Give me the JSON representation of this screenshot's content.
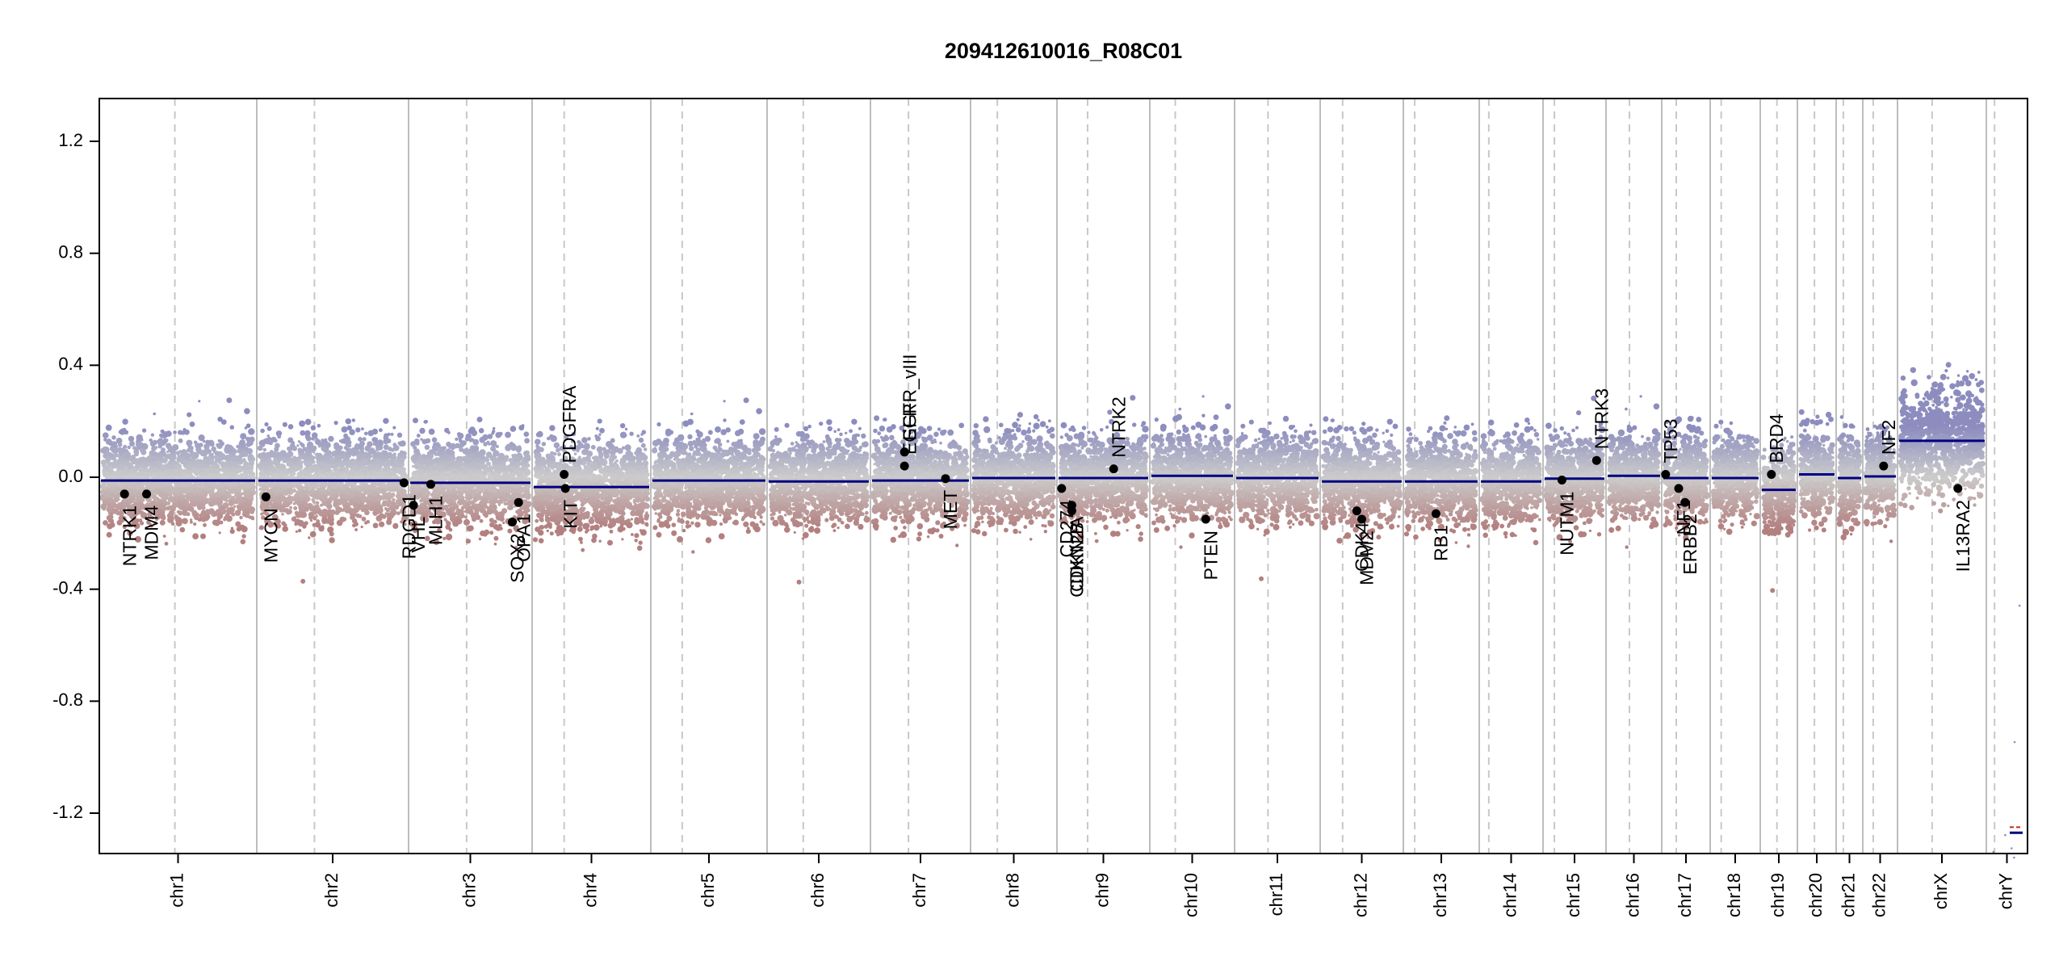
{
  "chart_data": {
    "type": "scatter",
    "title": "209412610016_R08C01",
    "xlabel": "",
    "ylabel": "",
    "ylim": [
      -1.35,
      1.35
    ],
    "y_ticks": [
      -1.2,
      -0.8,
      -0.4,
      0.0,
      0.4,
      0.8,
      1.2
    ],
    "y_tick_labels": [
      "-1.2",
      "-0.8",
      "-0.4",
      "0.0",
      "0.4",
      "0.8",
      "1.2"
    ],
    "grid": false,
    "colors": {
      "gain": "#8c8cbf",
      "loss": "#b38080",
      "neutral": "#cccccc",
      "segment": "#000080",
      "gene_point": "#000000",
      "chrom_boundary": "#bdbdbd",
      "centromere": "#c8c8c8",
      "frame": "#000000",
      "y_segment_red": "#cc2222"
    },
    "chromosomes": [
      {
        "name": "chr1",
        "centromere": 0.48,
        "segment": -0.012
      },
      {
        "name": "chr2",
        "centromere": 0.38,
        "segment": -0.012
      },
      {
        "name": "chr3",
        "centromere": 0.47,
        "segment": -0.02
      },
      {
        "name": "chr4",
        "centromere": 0.27,
        "segment": -0.035
      },
      {
        "name": "chr5",
        "centromere": 0.27,
        "segment": -0.012
      },
      {
        "name": "chr6",
        "centromere": 0.35,
        "segment": -0.015
      },
      {
        "name": "chr7",
        "centromere": 0.38,
        "segment": -0.012
      },
      {
        "name": "chr8",
        "centromere": 0.31,
        "segment": -0.003
      },
      {
        "name": "chr9",
        "centromere": 0.33,
        "segment": -0.003
      },
      {
        "name": "chr10",
        "centromere": 0.3,
        "segment": 0.005
      },
      {
        "name": "chr11",
        "centromere": 0.39,
        "segment": -0.003
      },
      {
        "name": "chr12",
        "centromere": 0.27,
        "segment": -0.015
      },
      {
        "name": "chr13",
        "centromere": 0.15,
        "segment": -0.015
      },
      {
        "name": "chr14",
        "centromere": 0.15,
        "segment": -0.015
      },
      {
        "name": "chr15",
        "centromere": 0.18,
        "segment": -0.005
      },
      {
        "name": "chr16",
        "centromere": 0.42,
        "segment": 0.005
      },
      {
        "name": "chr17",
        "centromere": 0.3,
        "segment": -0.003
      },
      {
        "name": "chr18",
        "centromere": 0.22,
        "segment": -0.003
      },
      {
        "name": "chr19",
        "centromere": 0.45,
        "segment": -0.045
      },
      {
        "name": "chr20",
        "centromere": 0.44,
        "segment": 0.01
      },
      {
        "name": "chr21",
        "centromere": 0.27,
        "segment": -0.003
      },
      {
        "name": "chr22",
        "centromere": 0.3,
        "segment": 0.003
      },
      {
        "name": "chrX",
        "centromere": 0.39,
        "segment": 0.13
      },
      {
        "name": "chrY",
        "centromere": 0.2,
        "segment": -1.27
      }
    ],
    "genes": [
      {
        "name": "NTRK1",
        "chrom": "chr1",
        "pos": 0.16,
        "value": -0.06
      },
      {
        "name": "MDM4",
        "chrom": "chr1",
        "pos": 0.3,
        "value": -0.06
      },
      {
        "name": "MYCN",
        "chrom": "chr2",
        "pos": 0.06,
        "value": -0.07
      },
      {
        "name": "RDGD1",
        "chrom": "chr2",
        "pos": 0.97,
        "value": -0.02
      },
      {
        "name": "VHL",
        "chrom": "chr3",
        "pos": 0.04,
        "value": -0.1
      },
      {
        "name": "MLH1",
        "chrom": "chr3",
        "pos": 0.18,
        "value": -0.025
      },
      {
        "name": "SOX2",
        "chrom": "chr3",
        "pos": 0.84,
        "value": -0.16
      },
      {
        "name": "OPA1",
        "chrom": "chr3",
        "pos": 0.89,
        "value": -0.09
      },
      {
        "name": "KIT",
        "chrom": "chr4",
        "pos": 0.28,
        "value": -0.04
      },
      {
        "name": "PDGFRA",
        "chrom": "chr4",
        "pos": 0.27,
        "value": 0.01
      },
      {
        "name": "EGFR",
        "chrom": "chr7",
        "pos": 0.34,
        "value": 0.04
      },
      {
        "name": "EGFR_vIII",
        "chrom": "chr7",
        "pos": 0.34,
        "value": 0.09
      },
      {
        "name": "MET",
        "chrom": "chr7",
        "pos": 0.75,
        "value": -0.005
      },
      {
        "name": "CD274",
        "chrom": "chr9",
        "pos": 0.05,
        "value": -0.04
      },
      {
        "name": "CDKN2A",
        "chrom": "chr9",
        "pos": 0.16,
        "value": -0.1
      },
      {
        "name": "CDKN2B",
        "chrom": "chr9",
        "pos": 0.16,
        "value": -0.12
      },
      {
        "name": "NTRK2",
        "chrom": "chr9",
        "pos": 0.61,
        "value": 0.03
      },
      {
        "name": "PTEN",
        "chrom": "chr10",
        "pos": 0.66,
        "value": -0.15
      },
      {
        "name": "CDK4",
        "chrom": "chr12",
        "pos": 0.44,
        "value": -0.12
      },
      {
        "name": "MDM2",
        "chrom": "chr12",
        "pos": 0.5,
        "value": -0.15
      },
      {
        "name": "RB1",
        "chrom": "chr13",
        "pos": 0.43,
        "value": -0.13
      },
      {
        "name": "NUTM1",
        "chrom": "chr15",
        "pos": 0.3,
        "value": -0.01
      },
      {
        "name": "NTRK3",
        "chrom": "chr15",
        "pos": 0.85,
        "value": 0.06
      },
      {
        "name": "TP53",
        "chrom": "chr17",
        "pos": 0.08,
        "value": 0.01
      },
      {
        "name": "NF1",
        "chrom": "chr17",
        "pos": 0.35,
        "value": -0.04
      },
      {
        "name": "ERBB2",
        "chrom": "chr17",
        "pos": 0.48,
        "value": -0.09
      },
      {
        "name": "BRD4",
        "chrom": "chr19",
        "pos": 0.3,
        "value": 0.01
      },
      {
        "name": "NF2",
        "chrom": "chr22",
        "pos": 0.6,
        "value": 0.04
      },
      {
        "name": "IL13RA2",
        "chrom": "chrX",
        "pos": 0.68,
        "value": -0.04
      }
    ]
  }
}
